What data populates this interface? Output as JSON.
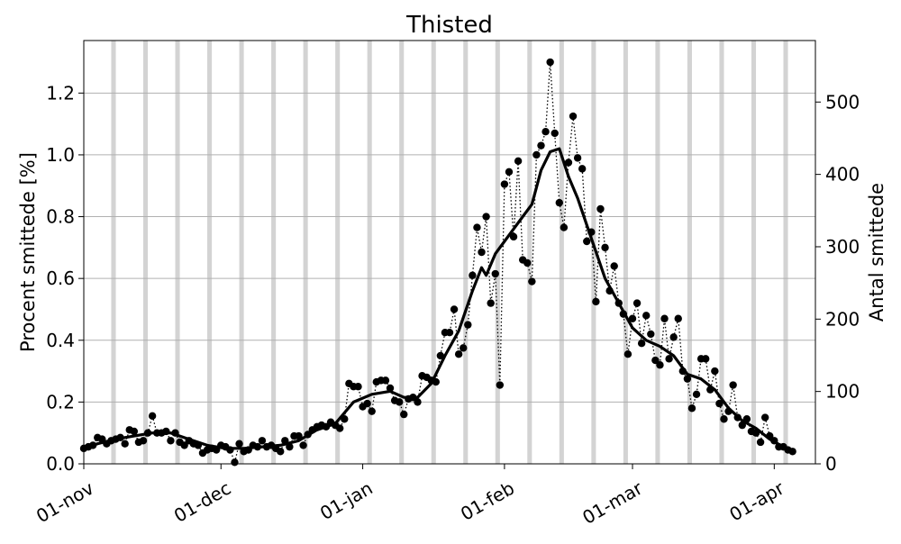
{
  "chart_data": {
    "type": "line",
    "title": "Thisted",
    "ylabel": "Procent smittede [%]",
    "y2label": "Antal smittede",
    "xlim": [
      "2020-11-01",
      "2021-04-10"
    ],
    "ylim": [
      0,
      1.37
    ],
    "y2lim": [
      0,
      585
    ],
    "x_ticks": [
      {
        "date": "2020-11-01",
        "label": "01-nov"
      },
      {
        "date": "2020-12-01",
        "label": "01-dec"
      },
      {
        "date": "2021-01-01",
        "label": "01-jan"
      },
      {
        "date": "2021-02-01",
        "label": "01-feb"
      },
      {
        "date": "2021-03-01",
        "label": "01-mar"
      },
      {
        "date": "2021-04-01",
        "label": "01-apr"
      }
    ],
    "y_ticks": [
      {
        "value": 0.0,
        "label": "0.0"
      },
      {
        "value": 0.2,
        "label": "0.2"
      },
      {
        "value": 0.4,
        "label": "0.4"
      },
      {
        "value": 0.6,
        "label": "0.6"
      },
      {
        "value": 0.8,
        "label": "0.8"
      },
      {
        "value": 1.0,
        "label": "1.0"
      },
      {
        "value": 1.2,
        "label": "1.2"
      }
    ],
    "y2_ticks": [
      {
        "value": 0,
        "label": "0"
      },
      {
        "value": 100,
        "label": "100"
      },
      {
        "value": 200,
        "label": "200"
      },
      {
        "value": 300,
        "label": "300"
      },
      {
        "value": 400,
        "label": "400"
      },
      {
        "value": 500,
        "label": "500"
      }
    ],
    "grid": "horizontal",
    "weekend_shading_color": "#d3d3d3",
    "series": [
      {
        "style": "dotted-markers",
        "color": "#000000",
        "points": [
          [
            "2020-11-01",
            0.05
          ],
          [
            "2020-11-02",
            0.055
          ],
          [
            "2020-11-03",
            0.06
          ],
          [
            "2020-11-04",
            0.085
          ],
          [
            "2020-11-05",
            0.08
          ],
          [
            "2020-11-06",
            0.065
          ],
          [
            "2020-11-07",
            0.075
          ],
          [
            "2020-11-08",
            0.08
          ],
          [
            "2020-11-09",
            0.085
          ],
          [
            "2020-11-10",
            0.065
          ],
          [
            "2020-11-11",
            0.11
          ],
          [
            "2020-11-12",
            0.105
          ],
          [
            "2020-11-13",
            0.07
          ],
          [
            "2020-11-14",
            0.075
          ],
          [
            "2020-11-15",
            0.1
          ],
          [
            "2020-11-16",
            0.155
          ],
          [
            "2020-11-17",
            0.1
          ],
          [
            "2020-11-18",
            0.1
          ],
          [
            "2020-11-19",
            0.105
          ],
          [
            "2020-11-20",
            0.075
          ],
          [
            "2020-11-21",
            0.1
          ],
          [
            "2020-11-22",
            0.07
          ],
          [
            "2020-11-23",
            0.06
          ],
          [
            "2020-11-24",
            0.075
          ],
          [
            "2020-11-25",
            0.065
          ],
          [
            "2020-11-26",
            0.06
          ],
          [
            "2020-11-27",
            0.035
          ],
          [
            "2020-11-28",
            0.045
          ],
          [
            "2020-11-29",
            0.05
          ],
          [
            "2020-11-30",
            0.045
          ],
          [
            "2020-12-01",
            0.06
          ],
          [
            "2020-12-02",
            0.055
          ],
          [
            "2020-12-03",
            0.045
          ],
          [
            "2020-12-04",
            0.005
          ],
          [
            "2020-12-05",
            0.065
          ],
          [
            "2020-12-06",
            0.04
          ],
          [
            "2020-12-07",
            0.045
          ],
          [
            "2020-12-08",
            0.06
          ],
          [
            "2020-12-09",
            0.055
          ],
          [
            "2020-12-10",
            0.075
          ],
          [
            "2020-12-11",
            0.055
          ],
          [
            "2020-12-12",
            0.06
          ],
          [
            "2020-12-13",
            0.05
          ],
          [
            "2020-12-14",
            0.04
          ],
          [
            "2020-12-15",
            0.075
          ],
          [
            "2020-12-16",
            0.055
          ],
          [
            "2020-12-17",
            0.09
          ],
          [
            "2020-12-18",
            0.09
          ],
          [
            "2020-12-19",
            0.06
          ],
          [
            "2020-12-20",
            0.095
          ],
          [
            "2020-12-21",
            0.11
          ],
          [
            "2020-12-22",
            0.12
          ],
          [
            "2020-12-23",
            0.125
          ],
          [
            "2020-12-24",
            0.12
          ],
          [
            "2020-12-25",
            0.135
          ],
          [
            "2020-12-26",
            0.125
          ],
          [
            "2020-12-27",
            0.115
          ],
          [
            "2020-12-28",
            0.145
          ],
          [
            "2020-12-29",
            0.26
          ],
          [
            "2020-12-30",
            0.25
          ],
          [
            "2020-12-31",
            0.25
          ],
          [
            "2021-01-01",
            0.185
          ],
          [
            "2021-01-02",
            0.195
          ],
          [
            "2021-01-03",
            0.17
          ],
          [
            "2021-01-04",
            0.265
          ],
          [
            "2021-01-05",
            0.27
          ],
          [
            "2021-01-06",
            0.27
          ],
          [
            "2021-01-07",
            0.245
          ],
          [
            "2021-01-08",
            0.205
          ],
          [
            "2021-01-09",
            0.2
          ],
          [
            "2021-01-10",
            0.16
          ],
          [
            "2021-01-11",
            0.21
          ],
          [
            "2021-01-12",
            0.215
          ],
          [
            "2021-01-13",
            0.2
          ],
          [
            "2021-01-14",
            0.285
          ],
          [
            "2021-01-15",
            0.28
          ],
          [
            "2021-01-16",
            0.27
          ],
          [
            "2021-01-17",
            0.265
          ],
          [
            "2021-01-18",
            0.35
          ],
          [
            "2021-01-19",
            0.425
          ],
          [
            "2021-01-20",
            0.425
          ],
          [
            "2021-01-21",
            0.5
          ],
          [
            "2021-01-22",
            0.355
          ],
          [
            "2021-01-23",
            0.375
          ],
          [
            "2021-01-24",
            0.45
          ],
          [
            "2021-01-25",
            0.61
          ],
          [
            "2021-01-26",
            0.765
          ],
          [
            "2021-01-27",
            0.685
          ],
          [
            "2021-01-28",
            0.8
          ],
          [
            "2021-01-29",
            0.52
          ],
          [
            "2021-01-30",
            0.615
          ],
          [
            "2021-01-31",
            0.255
          ],
          [
            "2021-02-01",
            0.905
          ],
          [
            "2021-02-02",
            0.945
          ],
          [
            "2021-02-03",
            0.735
          ],
          [
            "2021-02-04",
            0.98
          ],
          [
            "2021-02-05",
            0.66
          ],
          [
            "2021-02-06",
            0.65
          ],
          [
            "2021-02-07",
            0.59
          ],
          [
            "2021-02-08",
            1.0
          ],
          [
            "2021-02-09",
            1.03
          ],
          [
            "2021-02-10",
            1.075
          ],
          [
            "2021-02-11",
            1.3
          ],
          [
            "2021-02-12",
            1.07
          ],
          [
            "2021-02-13",
            0.845
          ],
          [
            "2021-02-14",
            0.765
          ],
          [
            "2021-02-15",
            0.975
          ],
          [
            "2021-02-16",
            1.125
          ],
          [
            "2021-02-17",
            0.99
          ],
          [
            "2021-02-18",
            0.955
          ],
          [
            "2021-02-19",
            0.72
          ],
          [
            "2021-02-20",
            0.75
          ],
          [
            "2021-02-21",
            0.525
          ],
          [
            "2021-02-22",
            0.825
          ],
          [
            "2021-02-23",
            0.7
          ],
          [
            "2021-02-24",
            0.56
          ],
          [
            "2021-02-25",
            0.64
          ],
          [
            "2021-02-26",
            0.52
          ],
          [
            "2021-02-27",
            0.485
          ],
          [
            "2021-02-28",
            0.355
          ],
          [
            "2021-03-01",
            0.47
          ],
          [
            "2021-03-02",
            0.52
          ],
          [
            "2021-03-03",
            0.39
          ],
          [
            "2021-03-04",
            0.48
          ],
          [
            "2021-03-05",
            0.42
          ],
          [
            "2021-03-06",
            0.335
          ],
          [
            "2021-03-07",
            0.32
          ],
          [
            "2021-03-08",
            0.47
          ],
          [
            "2021-03-09",
            0.34
          ],
          [
            "2021-03-10",
            0.41
          ],
          [
            "2021-03-11",
            0.47
          ],
          [
            "2021-03-12",
            0.3
          ],
          [
            "2021-03-13",
            0.275
          ],
          [
            "2021-03-14",
            0.18
          ],
          [
            "2021-03-15",
            0.225
          ],
          [
            "2021-03-16",
            0.34
          ],
          [
            "2021-03-17",
            0.34
          ],
          [
            "2021-03-18",
            0.24
          ],
          [
            "2021-03-19",
            0.3
          ],
          [
            "2021-03-20",
            0.195
          ],
          [
            "2021-03-21",
            0.145
          ],
          [
            "2021-03-22",
            0.17
          ],
          [
            "2021-03-23",
            0.255
          ],
          [
            "2021-03-24",
            0.15
          ],
          [
            "2021-03-25",
            0.125
          ],
          [
            "2021-03-26",
            0.145
          ],
          [
            "2021-03-27",
            0.105
          ],
          [
            "2021-03-28",
            0.1
          ],
          [
            "2021-03-29",
            0.07
          ],
          [
            "2021-03-30",
            0.15
          ],
          [
            "2021-03-31",
            0.09
          ],
          [
            "2021-04-01",
            0.075
          ],
          [
            "2021-04-02",
            0.055
          ],
          [
            "2021-04-03",
            0.055
          ],
          [
            "2021-04-04",
            0.045
          ],
          [
            "2021-04-05",
            0.04
          ]
        ]
      },
      {
        "style": "smooth-line",
        "color": "#000000",
        "points": [
          [
            "2020-11-01",
            0.05
          ],
          [
            "2020-11-04",
            0.065
          ],
          [
            "2020-11-08",
            0.08
          ],
          [
            "2020-11-12",
            0.09
          ],
          [
            "2020-11-16",
            0.1
          ],
          [
            "2020-11-20",
            0.1
          ],
          [
            "2020-11-24",
            0.08
          ],
          [
            "2020-11-28",
            0.06
          ],
          [
            "2020-12-02",
            0.05
          ],
          [
            "2020-12-06",
            0.05
          ],
          [
            "2020-12-10",
            0.055
          ],
          [
            "2020-12-14",
            0.06
          ],
          [
            "2020-12-18",
            0.075
          ],
          [
            "2020-12-22",
            0.11
          ],
          [
            "2020-12-26",
            0.13
          ],
          [
            "2020-12-30",
            0.2
          ],
          [
            "2021-01-03",
            0.225
          ],
          [
            "2021-01-07",
            0.235
          ],
          [
            "2021-01-10",
            0.215
          ],
          [
            "2021-01-13",
            0.215
          ],
          [
            "2021-01-16",
            0.26
          ],
          [
            "2021-01-19",
            0.35
          ],
          [
            "2021-01-22",
            0.43
          ],
          [
            "2021-01-25",
            0.56
          ],
          [
            "2021-01-27",
            0.635
          ],
          [
            "2021-01-28",
            0.61
          ],
          [
            "2021-01-30",
            0.68
          ],
          [
            "2021-02-01",
            0.72
          ],
          [
            "2021-02-03",
            0.76
          ],
          [
            "2021-02-05",
            0.8
          ],
          [
            "2021-02-07",
            0.84
          ],
          [
            "2021-02-09",
            0.95
          ],
          [
            "2021-02-11",
            1.01
          ],
          [
            "2021-02-13",
            1.02
          ],
          [
            "2021-02-15",
            0.93
          ],
          [
            "2021-02-17",
            0.86
          ],
          [
            "2021-02-20",
            0.73
          ],
          [
            "2021-02-23",
            0.6
          ],
          [
            "2021-02-26",
            0.52
          ],
          [
            "2021-03-01",
            0.44
          ],
          [
            "2021-03-04",
            0.4
          ],
          [
            "2021-03-07",
            0.38
          ],
          [
            "2021-03-10",
            0.35
          ],
          [
            "2021-03-13",
            0.29
          ],
          [
            "2021-03-16",
            0.275
          ],
          [
            "2021-03-19",
            0.24
          ],
          [
            "2021-03-22",
            0.18
          ],
          [
            "2021-03-25",
            0.14
          ],
          [
            "2021-03-28",
            0.115
          ],
          [
            "2021-03-31",
            0.08
          ],
          [
            "2021-04-03",
            0.055
          ],
          [
            "2021-04-05",
            0.04
          ]
        ]
      }
    ]
  }
}
